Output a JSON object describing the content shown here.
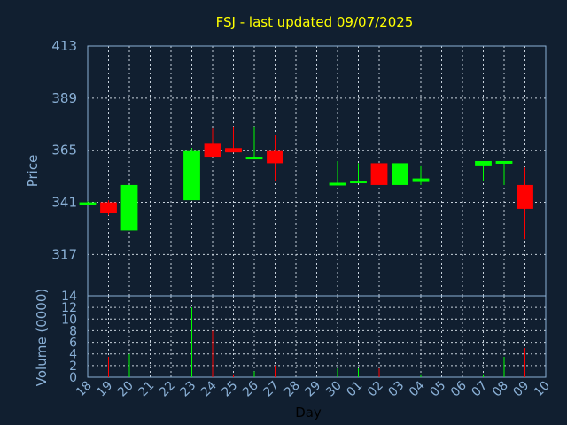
{
  "chart_data": {
    "type": "candlestick",
    "title": "FSJ - last updated 09/07/2025",
    "xlabel": "Day",
    "ylabel_price": "Price",
    "ylabel_volume": "Volume (0000)",
    "x_ticks": [
      "18",
      "19",
      "20",
      "21",
      "22",
      "23",
      "24",
      "25",
      "26",
      "27",
      "28",
      "29",
      "30",
      "01",
      "02",
      "03",
      "04",
      "05",
      "06",
      "07",
      "08",
      "09",
      "10"
    ],
    "price_ylim": [
      298,
      413
    ],
    "price_ticks": [
      413,
      389,
      365,
      341,
      317
    ],
    "volume_ylim": [
      0,
      14
    ],
    "volume_ticks": [
      14,
      12,
      10,
      8,
      6,
      4,
      2,
      0
    ],
    "grid": true,
    "colors": {
      "up": "#00ff00",
      "down": "#ff0000",
      "title": "#ffff00",
      "axis_text": "#8ab0d6",
      "background": "#111f30"
    },
    "candles": [
      {
        "day": "18",
        "open": 341,
        "high": 341.5,
        "low": 340.5,
        "close": 341,
        "volume": 0
      },
      {
        "day": "19",
        "open": 341,
        "high": 342,
        "low": 335,
        "close": 336,
        "volume": 3.5
      },
      {
        "day": "20",
        "open": 328,
        "high": 349,
        "low": 328,
        "close": 349,
        "volume": 4
      },
      {
        "day": "23",
        "open": 342,
        "high": 366,
        "low": 342,
        "close": 365,
        "volume": 12
      },
      {
        "day": "24",
        "open": 368,
        "high": 375,
        "low": 362,
        "close": 362,
        "volume": 8
      },
      {
        "day": "25",
        "open": 366,
        "high": 376,
        "low": 364,
        "close": 364,
        "volume": 0.5
      },
      {
        "day": "26",
        "open": 362,
        "high": 376,
        "low": 361,
        "close": 362,
        "volume": 1
      },
      {
        "day": "27",
        "open": 365,
        "high": 372,
        "low": 351,
        "close": 359,
        "volume": 2
      },
      {
        "day": "30",
        "open": 349,
        "high": 360,
        "low": 349,
        "close": 350,
        "volume": 1.5
      },
      {
        "day": "01",
        "open": 351,
        "high": 359,
        "low": 350,
        "close": 351,
        "volume": 1.5
      },
      {
        "day": "02",
        "open": 359,
        "high": 359,
        "low": 349,
        "close": 349,
        "volume": 1.5
      },
      {
        "day": "03",
        "open": 349,
        "high": 359,
        "low": 349,
        "close": 359,
        "volume": 2
      },
      {
        "day": "04",
        "open": 352,
        "high": 358,
        "low": 349,
        "close": 352,
        "volume": 0.5
      },
      {
        "day": "07",
        "open": 358,
        "high": 360,
        "low": 351,
        "close": 360,
        "volume": 0.5
      },
      {
        "day": "08",
        "open": 360,
        "high": 360,
        "low": 349,
        "close": 360,
        "volume": 3.5
      },
      {
        "day": "09",
        "open": 349,
        "high": 357,
        "low": 324,
        "close": 338,
        "volume": 5
      }
    ]
  }
}
